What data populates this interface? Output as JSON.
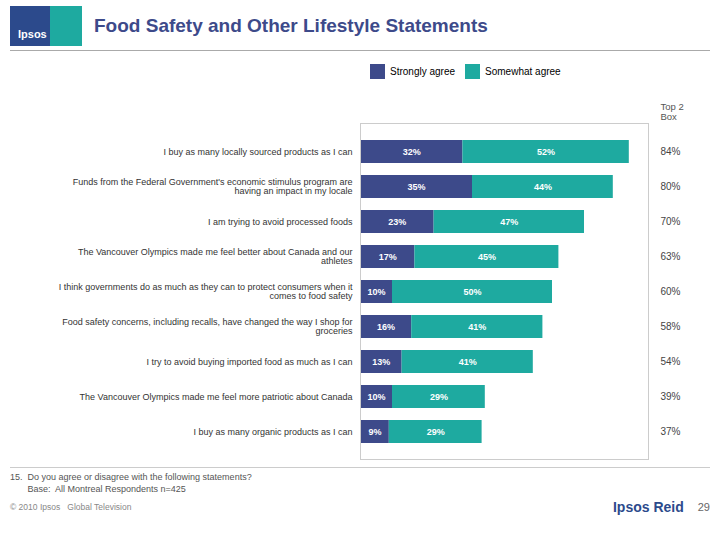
{
  "chart_data": {
    "type": "bar",
    "title": "Food Safety and Other Lifestyle Statements",
    "orientation": "horizontal",
    "stacked": true,
    "data_labels": true,
    "legend": "top",
    "tick_labels": "y",
    "grid": false,
    "xlim": [
      0,
      90
    ],
    "categories": [
      "I buy as many locally sourced products as I can",
      "Funds from the Federal Government's economic stimulus program are\nhaving an impact in my locale",
      "I am trying to avoid processed foods",
      "The Vancouver Olympics made me feel better about Canada and our\nathletes",
      "I think governments do as much as they can to protect consumers when it\ncomes to food safety",
      "Food safety concerns, including recalls, have changed the way I shop for\ngroceries",
      "I try to avoid buying imported food as much as I can",
      "The Vancouver Olympics made me feel more patriotic about Canada",
      "I buy as many organic products as I can"
    ],
    "series": [
      {
        "name": "Strongly agree",
        "color": "#3d4a8a",
        "values": [
          32,
          35,
          23,
          17,
          10,
          16,
          13,
          10,
          9
        ],
        "value_labels": [
          "32%",
          "35%",
          "23%",
          "17%",
          "10%",
          "16%",
          "13%",
          "10%",
          "9%"
        ]
      },
      {
        "name": "Somewhat agree",
        "color": "#1eaaa0",
        "values": [
          52,
          44,
          47,
          45,
          50,
          41,
          41,
          29,
          29
        ],
        "value_labels": [
          "52%",
          "44%",
          "47%",
          "45%",
          "50%",
          "41%",
          "41%",
          "29%",
          "29%"
        ]
      }
    ],
    "top2box": {
      "title": "Top 2\nBox",
      "labels": [
        "84%",
        "80%",
        "70%",
        "63%",
        "60%",
        "58%",
        "54%",
        "39%",
        "37%"
      ]
    },
    "annotations": [
      "Ipsos",
      "15.  Do you agree or disagree with the following statements?",
      "       Base:  All Montreal Respondents n=425",
      "© 2010 Ipsos   Global Television",
      "Ipsos Reid",
      "29"
    ]
  }
}
